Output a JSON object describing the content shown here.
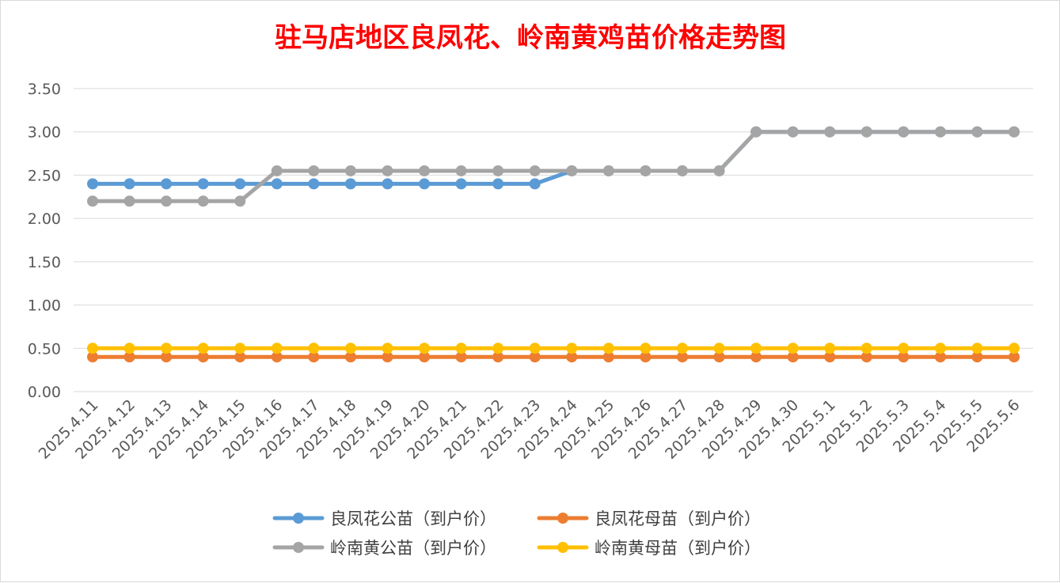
{
  "chart_data": {
    "type": "line",
    "title": "驻马店地区良凤花、岭南黄鸡苗价格走势图",
    "xlabel": "",
    "ylabel": "",
    "ylim": [
      0,
      3.5
    ],
    "yticks": [
      "0.00",
      "0.50",
      "1.00",
      "1.50",
      "2.00",
      "2.50",
      "3.00",
      "3.50"
    ],
    "grid": true,
    "legend_position": "bottom",
    "x": [
      "2025.4.11",
      "2025.4.12",
      "2025.4.13",
      "2025.4.14",
      "2025.4.15",
      "2025.4.16",
      "2025.4.17",
      "2025.4.18",
      "2025.4.19",
      "2025.4.20",
      "2025.4.21",
      "2025.4.22",
      "2025.4.23",
      "2025.4.24",
      "2025.4.25",
      "2025.4.26",
      "2025.4.27",
      "2025.4.28",
      "2025.4.29",
      "2025.4.30",
      "2025.5.1",
      "2025.5.2",
      "2025.5.3",
      "2025.5.4",
      "2025.5.5",
      "2025.5.6"
    ],
    "series": [
      {
        "name": "良凤花公苗（到户价）",
        "color": "#5b9bd5",
        "values": [
          2.4,
          2.4,
          2.4,
          2.4,
          2.4,
          2.4,
          2.4,
          2.4,
          2.4,
          2.4,
          2.4,
          2.4,
          2.4,
          2.55,
          2.55,
          2.55,
          2.55,
          2.55,
          3.0,
          3.0,
          3.0,
          3.0,
          3.0,
          3.0,
          3.0,
          3.0
        ]
      },
      {
        "name": "良凤花母苗（到户价）",
        "color": "#ed7d31",
        "values": [
          0.4,
          0.4,
          0.4,
          0.4,
          0.4,
          0.4,
          0.4,
          0.4,
          0.4,
          0.4,
          0.4,
          0.4,
          0.4,
          0.4,
          0.4,
          0.4,
          0.4,
          0.4,
          0.4,
          0.4,
          0.4,
          0.4,
          0.4,
          0.4,
          0.4,
          0.4
        ]
      },
      {
        "name": "岭南黄公苗（到户价）",
        "color": "#a5a5a5",
        "values": [
          2.2,
          2.2,
          2.2,
          2.2,
          2.2,
          2.55,
          2.55,
          2.55,
          2.55,
          2.55,
          2.55,
          2.55,
          2.55,
          2.55,
          2.55,
          2.55,
          2.55,
          2.55,
          3.0,
          3.0,
          3.0,
          3.0,
          3.0,
          3.0,
          3.0,
          3.0
        ]
      },
      {
        "name": "岭南黄母苗（到户价）",
        "color": "#ffc000",
        "values": [
          0.5,
          0.5,
          0.5,
          0.5,
          0.5,
          0.5,
          0.5,
          0.5,
          0.5,
          0.5,
          0.5,
          0.5,
          0.5,
          0.5,
          0.5,
          0.5,
          0.5,
          0.5,
          0.5,
          0.5,
          0.5,
          0.5,
          0.5,
          0.5,
          0.5,
          0.5
        ]
      }
    ],
    "colors": {
      "gridline": "#d9d9d9",
      "title": "#ff0000",
      "axis_text": "#595959"
    }
  }
}
